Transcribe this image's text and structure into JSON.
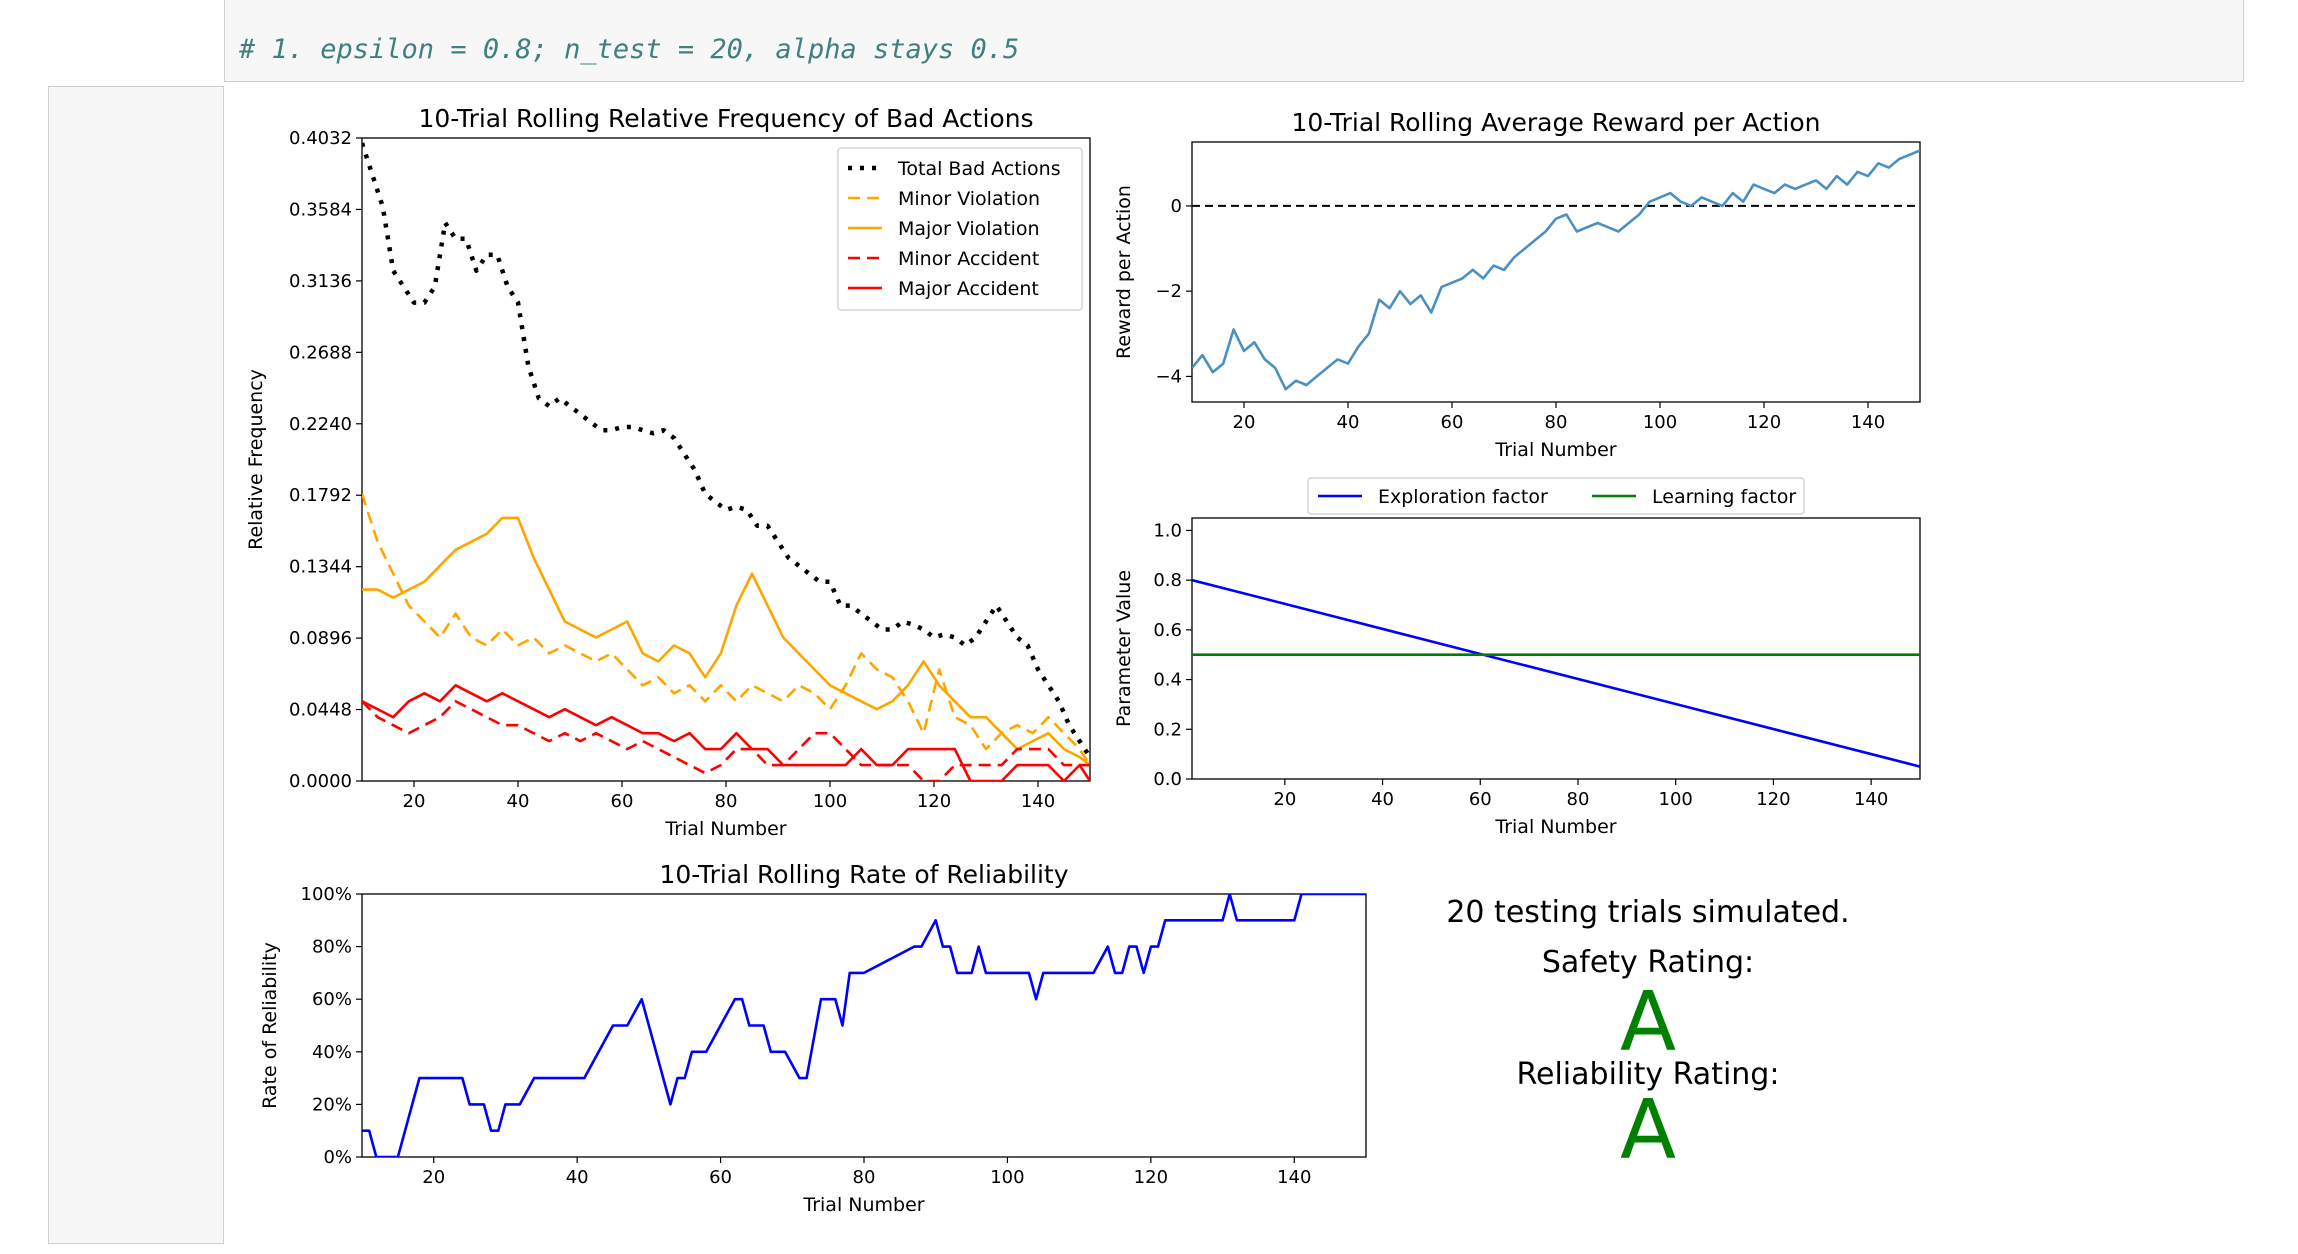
{
  "code": {
    "comment": "# 1. epsilon = 0.8; n_test = 20, alpha stays 0.5"
  },
  "summary": {
    "trials_text": "20 testing trials simulated.",
    "safety_label": "Safety Rating:",
    "safety_grade": "A",
    "reliability_label": "Reliability Rating:",
    "reliability_grade": "A"
  },
  "colors": {
    "total": "#000000",
    "minor_violation": "#ffa500",
    "major_violation": "#ffa500",
    "minor_accident": "#ff0000",
    "major_accident": "#ff0000",
    "reward": "#4a90c0",
    "exploration": "#0000ff",
    "learning": "#008000",
    "reliability": "#0000ff"
  },
  "chart_data": [
    {
      "id": "bad",
      "type": "line",
      "title": "10-Trial Rolling Relative Frequency of Bad Actions",
      "xlabel": "Trial Number",
      "ylabel": "Relative Frequency",
      "xlim": [
        10,
        150
      ],
      "ylim": [
        0,
        0.4032
      ],
      "xticks": [
        20,
        40,
        60,
        80,
        100,
        120,
        140
      ],
      "yticks": [
        "0.0000",
        "0.0448",
        "0.0896",
        "0.1344",
        "0.1792",
        "0.2240",
        "0.2688",
        "0.3136",
        "0.3584",
        "0.4032"
      ],
      "legend_position": "top-right",
      "series": [
        {
          "name": "Total Bad Actions",
          "style": "dotted",
          "color": "#000000",
          "x": [
            10,
            12,
            14,
            16,
            18,
            20,
            22,
            24,
            26,
            28,
            30,
            32,
            34,
            36,
            38,
            40,
            42,
            44,
            46,
            48,
            50,
            52,
            54,
            56,
            58,
            60,
            62,
            64,
            66,
            68,
            70,
            72,
            74,
            76,
            78,
            80,
            82,
            84,
            86,
            88,
            90,
            92,
            94,
            96,
            98,
            100,
            102,
            104,
            106,
            108,
            110,
            112,
            114,
            116,
            118,
            120,
            122,
            124,
            126,
            128,
            130,
            132,
            134,
            136,
            138,
            140,
            142,
            144,
            146,
            148,
            150
          ],
          "y": [
            0.4,
            0.38,
            0.36,
            0.32,
            0.31,
            0.3,
            0.3,
            0.31,
            0.35,
            0.34,
            0.34,
            0.32,
            0.33,
            0.33,
            0.31,
            0.3,
            0.26,
            0.24,
            0.235,
            0.24,
            0.235,
            0.23,
            0.225,
            0.22,
            0.22,
            0.222,
            0.222,
            0.22,
            0.218,
            0.22,
            0.215,
            0.205,
            0.195,
            0.18,
            0.175,
            0.17,
            0.172,
            0.17,
            0.16,
            0.16,
            0.15,
            0.14,
            0.135,
            0.13,
            0.125,
            0.125,
            0.11,
            0.11,
            0.105,
            0.1,
            0.095,
            0.095,
            0.1,
            0.098,
            0.095,
            0.09,
            0.092,
            0.09,
            0.085,
            0.09,
            0.1,
            0.11,
            0.1,
            0.09,
            0.085,
            0.07,
            0.06,
            0.05,
            0.035,
            0.025,
            0.015
          ]
        },
        {
          "name": "Minor Violation",
          "style": "dashed",
          "color": "#ffa500",
          "x": [
            10,
            13,
            16,
            19,
            22,
            25,
            28,
            31,
            34,
            37,
            40,
            43,
            46,
            49,
            52,
            55,
            58,
            61,
            64,
            67,
            70,
            73,
            76,
            79,
            82,
            85,
            88,
            91,
            94,
            97,
            100,
            103,
            106,
            109,
            112,
            115,
            118,
            121,
            124,
            127,
            130,
            133,
            136,
            139,
            142,
            145,
            148,
            150
          ],
          "y": [
            0.18,
            0.15,
            0.13,
            0.11,
            0.1,
            0.09,
            0.105,
            0.09,
            0.085,
            0.095,
            0.085,
            0.09,
            0.08,
            0.085,
            0.08,
            0.075,
            0.08,
            0.07,
            0.06,
            0.065,
            0.055,
            0.06,
            0.05,
            0.06,
            0.05,
            0.06,
            0.055,
            0.05,
            0.06,
            0.055,
            0.045,
            0.06,
            0.08,
            0.07,
            0.065,
            0.05,
            0.03,
            0.07,
            0.04,
            0.035,
            0.02,
            0.03,
            0.035,
            0.03,
            0.04,
            0.03,
            0.02,
            0.01
          ]
        },
        {
          "name": "Major Violation",
          "style": "solid",
          "color": "#ffa500",
          "x": [
            10,
            13,
            16,
            19,
            22,
            25,
            28,
            31,
            34,
            37,
            40,
            43,
            46,
            49,
            52,
            55,
            58,
            61,
            64,
            67,
            70,
            73,
            76,
            79,
            82,
            85,
            88,
            91,
            94,
            97,
            100,
            103,
            106,
            109,
            112,
            115,
            118,
            121,
            124,
            127,
            130,
            133,
            136,
            139,
            142,
            145,
            148,
            150
          ],
          "y": [
            0.12,
            0.12,
            0.115,
            0.12,
            0.125,
            0.135,
            0.145,
            0.15,
            0.155,
            0.165,
            0.165,
            0.14,
            0.12,
            0.1,
            0.095,
            0.09,
            0.095,
            0.1,
            0.08,
            0.075,
            0.085,
            0.08,
            0.065,
            0.08,
            0.11,
            0.13,
            0.11,
            0.09,
            0.08,
            0.07,
            0.06,
            0.055,
            0.05,
            0.045,
            0.05,
            0.06,
            0.075,
            0.06,
            0.05,
            0.04,
            0.04,
            0.03,
            0.02,
            0.025,
            0.03,
            0.02,
            0.015,
            0.01
          ]
        },
        {
          "name": "Minor Accident",
          "style": "dashed",
          "color": "#ff0000",
          "x": [
            10,
            13,
            16,
            19,
            22,
            25,
            28,
            31,
            34,
            37,
            40,
            43,
            46,
            49,
            52,
            55,
            58,
            61,
            64,
            67,
            70,
            73,
            76,
            79,
            82,
            85,
            88,
            91,
            94,
            97,
            100,
            103,
            106,
            109,
            112,
            115,
            118,
            121,
            124,
            127,
            130,
            133,
            136,
            139,
            142,
            145,
            148,
            150
          ],
          "y": [
            0.05,
            0.04,
            0.035,
            0.03,
            0.035,
            0.04,
            0.05,
            0.045,
            0.04,
            0.035,
            0.035,
            0.03,
            0.025,
            0.03,
            0.025,
            0.03,
            0.025,
            0.02,
            0.025,
            0.02,
            0.015,
            0.01,
            0.005,
            0.01,
            0.02,
            0.02,
            0.01,
            0.01,
            0.02,
            0.03,
            0.03,
            0.02,
            0.01,
            0.01,
            0.01,
            0.01,
            0.0,
            0.0,
            0.01,
            0.01,
            0.01,
            0.01,
            0.02,
            0.02,
            0.02,
            0.01,
            0.01,
            0.01
          ]
        },
        {
          "name": "Major Accident",
          "style": "solid",
          "color": "#ff0000",
          "x": [
            10,
            13,
            16,
            19,
            22,
            25,
            28,
            31,
            34,
            37,
            40,
            43,
            46,
            49,
            52,
            55,
            58,
            61,
            64,
            67,
            70,
            73,
            76,
            79,
            82,
            85,
            88,
            91,
            94,
            97,
            100,
            103,
            106,
            109,
            112,
            115,
            118,
            121,
            124,
            127,
            130,
            133,
            136,
            139,
            142,
            145,
            148,
            150
          ],
          "y": [
            0.05,
            0.045,
            0.04,
            0.05,
            0.055,
            0.05,
            0.06,
            0.055,
            0.05,
            0.055,
            0.05,
            0.045,
            0.04,
            0.045,
            0.04,
            0.035,
            0.04,
            0.035,
            0.03,
            0.03,
            0.025,
            0.03,
            0.02,
            0.02,
            0.03,
            0.02,
            0.02,
            0.01,
            0.01,
            0.01,
            0.01,
            0.01,
            0.02,
            0.01,
            0.01,
            0.02,
            0.02,
            0.02,
            0.02,
            0.0,
            0.0,
            0.0,
            0.01,
            0.01,
            0.01,
            0.0,
            0.01,
            0.0
          ]
        }
      ]
    },
    {
      "id": "reward",
      "type": "line",
      "title": "10-Trial Rolling Average Reward per Action",
      "xlabel": "Trial Number",
      "ylabel": "Reward per Action",
      "xlim": [
        10,
        150
      ],
      "ylim": [
        -4.6,
        1.5
      ],
      "xticks": [
        20,
        40,
        60,
        80,
        100,
        120,
        140
      ],
      "yticks": [
        -4,
        -2,
        0
      ],
      "reference_line": 0,
      "series": [
        {
          "name": "",
          "style": "solid",
          "color": "#4a90c0",
          "x": [
            10,
            12,
            14,
            16,
            18,
            20,
            22,
            24,
            26,
            28,
            30,
            32,
            34,
            36,
            38,
            40,
            42,
            44,
            46,
            48,
            50,
            52,
            54,
            56,
            58,
            60,
            62,
            64,
            66,
            68,
            70,
            72,
            74,
            76,
            78,
            80,
            82,
            84,
            86,
            88,
            90,
            92,
            94,
            96,
            98,
            100,
            102,
            104,
            106,
            108,
            110,
            112,
            114,
            116,
            118,
            120,
            122,
            124,
            126,
            128,
            130,
            132,
            134,
            136,
            138,
            140,
            142,
            144,
            146,
            148,
            150
          ],
          "y": [
            -3.8,
            -3.5,
            -3.9,
            -3.7,
            -2.9,
            -3.4,
            -3.2,
            -3.6,
            -3.8,
            -4.3,
            -4.1,
            -4.2,
            -4.0,
            -3.8,
            -3.6,
            -3.7,
            -3.3,
            -3.0,
            -2.2,
            -2.4,
            -2.0,
            -2.3,
            -2.1,
            -2.5,
            -1.9,
            -1.8,
            -1.7,
            -1.5,
            -1.7,
            -1.4,
            -1.5,
            -1.2,
            -1.0,
            -0.8,
            -0.6,
            -0.3,
            -0.2,
            -0.6,
            -0.5,
            -0.4,
            -0.5,
            -0.6,
            -0.4,
            -0.2,
            0.1,
            0.2,
            0.3,
            0.1,
            0.0,
            0.2,
            0.1,
            0.0,
            0.3,
            0.1,
            0.5,
            0.4,
            0.3,
            0.5,
            0.4,
            0.5,
            0.6,
            0.4,
            0.7,
            0.5,
            0.8,
            0.7,
            1.0,
            0.9,
            1.1,
            1.2,
            1.3
          ]
        }
      ]
    },
    {
      "id": "params",
      "type": "line",
      "title": "",
      "xlabel": "Trial Number",
      "ylabel": "Parameter Value",
      "xlim": [
        1,
        150
      ],
      "ylim": [
        0,
        1.05
      ],
      "xticks": [
        20,
        40,
        60,
        80,
        100,
        120,
        140
      ],
      "yticks": [
        "0.0",
        "0.2",
        "0.4",
        "0.6",
        "0.8",
        "1.0"
      ],
      "legend_position": "top-center",
      "series": [
        {
          "name": "Exploration factor",
          "style": "solid",
          "color": "#0000ff",
          "x": [
            1,
            150
          ],
          "y": [
            0.8,
            0.05
          ]
        },
        {
          "name": "Learning factor",
          "style": "solid",
          "color": "#008000",
          "x": [
            1,
            150
          ],
          "y": [
            0.5,
            0.5
          ]
        }
      ]
    },
    {
      "id": "rel",
      "type": "line",
      "title": "10-Trial Rolling Rate of Reliability",
      "xlabel": "Trial Number",
      "ylabel": "Rate of Reliability",
      "xlim": [
        10,
        150
      ],
      "ylim": [
        0,
        100
      ],
      "xticks": [
        20,
        40,
        60,
        80,
        100,
        120,
        140
      ],
      "yticks": [
        "0%",
        "20%",
        "40%",
        "60%",
        "80%",
        "100%"
      ],
      "series": [
        {
          "name": "",
          "style": "solid",
          "color": "#0000ff",
          "x": [
            10,
            11,
            12,
            15,
            18,
            24,
            25,
            26,
            27,
            28,
            29,
            30,
            32,
            34,
            40,
            41,
            45,
            47,
            49,
            53,
            54,
            55,
            56,
            58,
            62,
            63,
            64,
            66,
            67,
            69,
            71,
            72,
            74,
            76,
            77,
            78,
            80,
            87,
            88,
            90,
            91,
            92,
            93,
            95,
            96,
            97,
            98,
            103,
            104,
            105,
            106,
            112,
            114,
            115,
            116,
            117,
            118,
            119,
            120,
            121,
            122,
            124,
            126,
            130,
            131,
            132,
            140,
            141,
            150
          ],
          "y": [
            10,
            10,
            0,
            0,
            30,
            30,
            20,
            20,
            20,
            10,
            10,
            20,
            20,
            30,
            30,
            30,
            50,
            50,
            60,
            20,
            30,
            30,
            40,
            40,
            60,
            60,
            50,
            50,
            40,
            40,
            30,
            30,
            60,
            60,
            50,
            70,
            70,
            80,
            80,
            90,
            80,
            80,
            70,
            70,
            80,
            70,
            70,
            70,
            60,
            70,
            70,
            70,
            80,
            70,
            70,
            80,
            80,
            70,
            80,
            80,
            90,
            90,
            90,
            90,
            100,
            90,
            90,
            100,
            100
          ]
        }
      ]
    }
  ]
}
